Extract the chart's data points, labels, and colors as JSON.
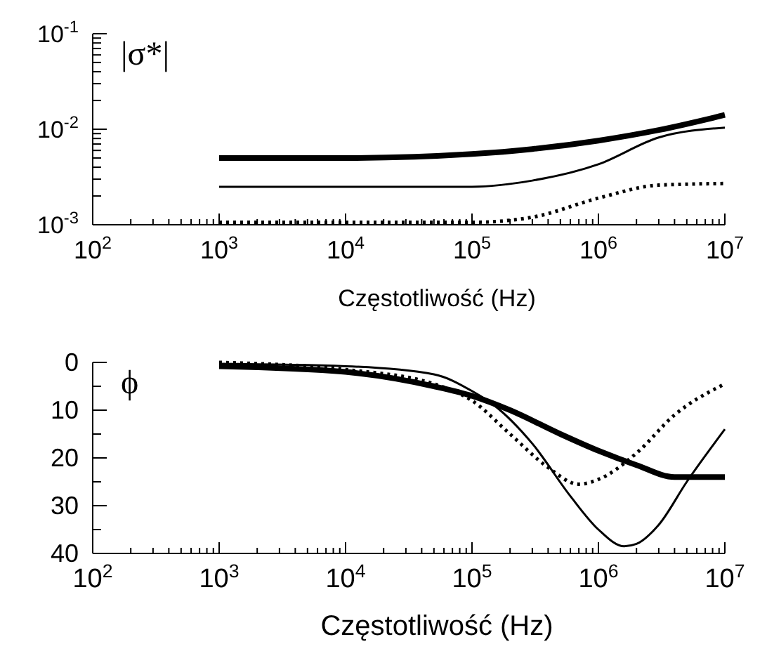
{
  "chart_data": [
    {
      "type": "line",
      "ylabel": "|σ*|",
      "xlabel": "Częstotliwość (Hz)",
      "log": "xy",
      "xlim": [
        100,
        10000000
      ],
      "ylim": [
        0.001,
        0.1
      ],
      "xticks": [
        {
          "value": 100,
          "label": "10$^{2}$"
        },
        {
          "value": 1000,
          "label": "10$^{3}$"
        },
        {
          "value": 10000,
          "label": "10$^{4}$"
        },
        {
          "value": 100000,
          "label": "10$^{5}$"
        },
        {
          "value": 1000000,
          "label": "10$^{6}$"
        },
        {
          "value": 10000000,
          "label": "10$^{7}$"
        }
      ],
      "yticks": [
        {
          "value": 0.001,
          "label": "10$^{-3}$"
        },
        {
          "value": 0.01,
          "label": "10$^{-2}$"
        },
        {
          "value": 0.1,
          "label": "10$^{-1}$"
        }
      ],
      "x": [
        1000,
        10000,
        100000,
        300000,
        1000000,
        3000000,
        10000000
      ],
      "series": [
        {
          "color": "#000000",
          "line_style": "solid",
          "values": [
            0.005,
            0.005,
            0.0055,
            0.0062,
            0.0076,
            0.0098,
            0.0141
          ]
        },
        {
          "color": "#000000",
          "line_style": "solid",
          "values": [
            0.0025,
            0.0025,
            0.0025,
            0.0029,
            0.0043,
            0.0082,
            0.0104
          ]
        },
        {
          "color": "#000000",
          "line_style": "dotted",
          "values": [
            0.00106,
            0.00106,
            0.00106,
            0.0012,
            0.0019,
            0.0026,
            0.0027
          ]
        }
      ],
      "grid": false
    },
    {
      "type": "line",
      "ylabel": "ϕ",
      "xlabel": "Częstotliwość (Hz)",
      "log": "x",
      "xlim": [
        100,
        10000000
      ],
      "ylim": [
        40,
        0
      ],
      "xticks": [
        {
          "value": 100,
          "label": "10$^{2}$"
        },
        {
          "value": 1000,
          "label": "10$^{3}$"
        },
        {
          "value": 10000,
          "label": "10$^{4}$"
        },
        {
          "value": 100000,
          "label": "10$^{5}$"
        },
        {
          "value": 1000000,
          "label": "10$^{6}$"
        },
        {
          "value": 10000000,
          "label": "10$^{7}$"
        }
      ],
      "yticks": [
        0,
        10,
        20,
        30,
        40
      ],
      "series": [
        {
          "color": "#000000",
          "line_style": "solid",
          "x": [
            1000,
            10000,
            50000,
            100000,
            200000,
            500000,
            1000000,
            2000000,
            4000000,
            10000000
          ],
          "values": [
            0.8,
            2,
            5,
            7,
            10,
            15,
            18.5,
            21.5,
            24,
            24
          ]
        },
        {
          "color": "#000000",
          "line_style": "solid",
          "x": [
            1000,
            10000,
            50000,
            100000,
            150000,
            300000,
            600000,
            1000000,
            1600000,
            2000000,
            3000000,
            5000000,
            10000000
          ],
          "values": [
            0.3,
            0.8,
            2.5,
            6,
            9,
            17,
            28,
            35,
            38.5,
            38,
            34,
            25,
            14
          ]
        },
        {
          "color": "#000000",
          "line_style": "dotted",
          "x": [
            1000,
            10000,
            50000,
            100000,
            200000,
            400000,
            700000,
            1000000,
            2000000,
            4000000,
            10000000
          ],
          "values": [
            0,
            1.5,
            4.5,
            8,
            15,
            22,
            25.5,
            24.5,
            19,
            11,
            4.5
          ]
        }
      ],
      "grid": false
    }
  ]
}
